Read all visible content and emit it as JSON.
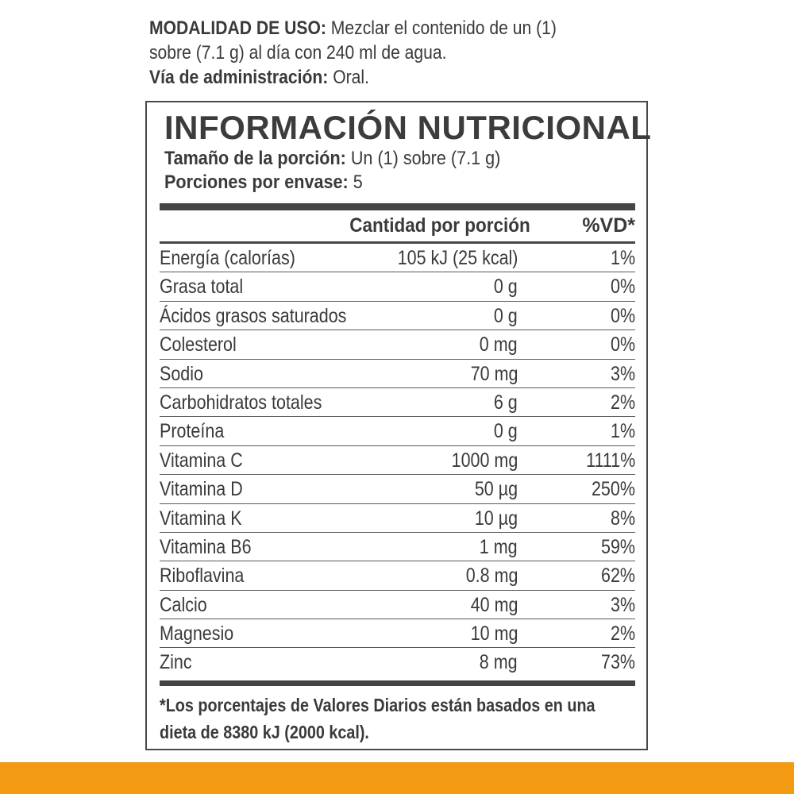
{
  "usage": {
    "mode_label": "MODALIDAD DE USO:",
    "mode_text_line1": " Mezclar el contenido de un (1)",
    "mode_text_line2": "sobre (7.1 g) al día con 240 ml de agua.",
    "route_label": "Vía de administración:",
    "route_text": " Oral."
  },
  "panel": {
    "title": "INFORMACIÓN NUTRICIONAL",
    "serving_size_label": "Tamaño de la porción:",
    "serving_size_value": " Un (1) sobre (7.1 g)",
    "servings_label": "Porciones por envase:",
    "servings_value": " 5",
    "col_amount": "Cantidad por porción",
    "col_dv": "%VD*",
    "rows": [
      {
        "name": "Energía (calorías)",
        "amount": "105 kJ (25 kcal)",
        "dv": "1%"
      },
      {
        "name": "Grasa total",
        "amount": "0 g",
        "dv": "0%"
      },
      {
        "name": "Ácidos grasos saturados",
        "amount": "0 g",
        "dv": "0%"
      },
      {
        "name": "Colesterol",
        "amount": "0 mg",
        "dv": "0%"
      },
      {
        "name": "Sodio",
        "amount": "70 mg",
        "dv": "3%"
      },
      {
        "name": "Carbohidratos totales",
        "amount": "6 g",
        "dv": "2%"
      },
      {
        "name": "Proteína",
        "amount": "0 g",
        "dv": "1%"
      },
      {
        "name": "Vitamina C",
        "amount": "1000 mg",
        "dv": "1111%"
      },
      {
        "name": "Vitamina D",
        "amount": "50 µg",
        "dv": "250%"
      },
      {
        "name": "Vitamina K",
        "amount": "10 µg",
        "dv": "8%"
      },
      {
        "name": "Vitamina B6",
        "amount": "1 mg",
        "dv": "59%"
      },
      {
        "name": "Riboflavina",
        "amount": "0.8 mg",
        "dv": "62%"
      },
      {
        "name": "Calcio",
        "amount": "40 mg",
        "dv": "3%"
      },
      {
        "name": "Magnesio",
        "amount": "10 mg",
        "dv": "2%"
      },
      {
        "name": "Zinc",
        "amount": "8 mg",
        "dv": "73%"
      }
    ],
    "footnote_line1": "*Los porcentajes de Valores Diarios están basados en una",
    "footnote_line2": "dieta de 8380 kJ (2000 kcal)."
  },
  "colors": {
    "text": "#3a3a3a",
    "rule": "#454545",
    "accent_bar": "#f19a12",
    "background": "#ffffff"
  }
}
